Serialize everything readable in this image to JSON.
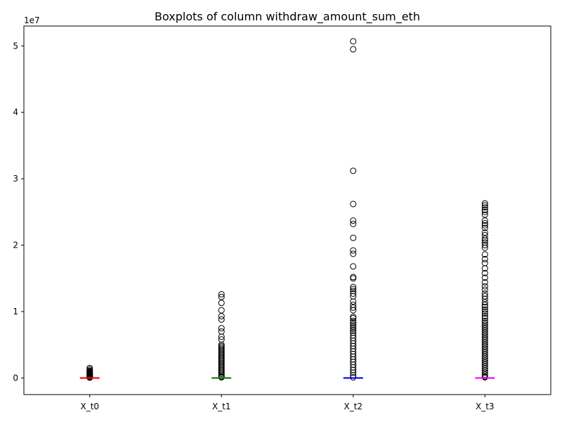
{
  "chart_data": {
    "type": "boxplot",
    "title": "Boxplots of column withdraw_amount_sum_eth",
    "xlabel": "",
    "ylabel": "",
    "y_offset_label": "1e7",
    "ylim": [
      -2500000,
      53000000
    ],
    "y_ticks": [
      0,
      10000000,
      20000000,
      30000000,
      40000000,
      50000000
    ],
    "y_tick_labels": [
      "0",
      "1",
      "2",
      "3",
      "4",
      "5"
    ],
    "grid": false,
    "categories": [
      "X_t0",
      "X_t1",
      "X_t2",
      "X_t3"
    ],
    "series": [
      {
        "name": "X_t0",
        "color": "#ff0000",
        "median": 0,
        "q1": 0,
        "q3": 0,
        "whisker_low": 0,
        "whisker_high": 0,
        "outliers": [
          1500000,
          1300000,
          1100000,
          1000000,
          900000,
          800000,
          700000,
          600000,
          500000,
          400000,
          300000,
          250000,
          200000,
          150000,
          100000,
          50000
        ]
      },
      {
        "name": "X_t1",
        "color": "#008000",
        "median": 0,
        "q1": 0,
        "q3": 0,
        "whisker_low": 0,
        "whisker_high": 0,
        "outliers": [
          12600000,
          12200000,
          11300000,
          10200000,
          9300000,
          8800000,
          7500000,
          7000000,
          6200000,
          5800000,
          5000000,
          4800000,
          4600000,
          4400000,
          4200000,
          4000000,
          3800000,
          3600000,
          3400000,
          3200000,
          3000000,
          2800000,
          2600000,
          2400000,
          2200000,
          2000000,
          1800000,
          1600000,
          1400000,
          1200000,
          1000000,
          800000,
          600000,
          400000,
          200000,
          100000
        ]
      },
      {
        "name": "X_t2",
        "color": "#0000ff",
        "median": 0,
        "q1": 0,
        "q3": 0,
        "whisker_low": 0,
        "whisker_high": 0,
        "outliers": [
          50700000,
          49500000,
          31200000,
          26200000,
          23700000,
          23200000,
          21100000,
          19200000,
          18700000,
          16800000,
          15200000,
          15000000,
          13700000,
          13400000,
          13100000,
          12700000,
          12300000,
          11500000,
          11000000,
          10600000,
          10200000,
          9200000,
          9000000,
          8600000,
          8300000,
          8000000,
          7700000,
          7400000,
          7100000,
          6800000,
          6400000,
          6000000,
          5600000,
          5200000,
          4800000,
          4400000,
          4000000,
          3600000,
          3200000,
          2800000,
          2400000,
          2000000,
          1600000,
          1200000,
          800000,
          400000,
          100000
        ]
      },
      {
        "name": "X_t3",
        "color": "#ff00ff",
        "median": 0,
        "q1": 0,
        "q3": 0,
        "whisker_low": 0,
        "whisker_high": 0,
        "outliers": [
          26300000,
          26000000,
          25700000,
          25300000,
          25000000,
          24600000,
          23700000,
          23300000,
          23000000,
          22600000,
          21900000,
          21500000,
          21000000,
          20700000,
          20400000,
          20000000,
          19600000,
          18600000,
          17900000,
          17300000,
          16500000,
          15800000,
          15100000,
          14400000,
          13800000,
          13300000,
          12700000,
          12300000,
          11900000,
          11400000,
          11000000,
          10700000,
          10300000,
          10000000,
          9700000,
          9300000,
          9000000,
          8600000,
          8300000,
          8000000,
          7700000,
          7400000,
          7100000,
          6800000,
          6500000,
          6200000,
          5900000,
          5600000,
          5300000,
          5000000,
          4700000,
          4400000,
          4100000,
          3800000,
          3500000,
          3200000,
          2900000,
          2600000,
          2300000,
          2000000,
          1700000,
          1400000,
          1100000,
          800000,
          500000,
          200000,
          100000
        ]
      }
    ]
  }
}
